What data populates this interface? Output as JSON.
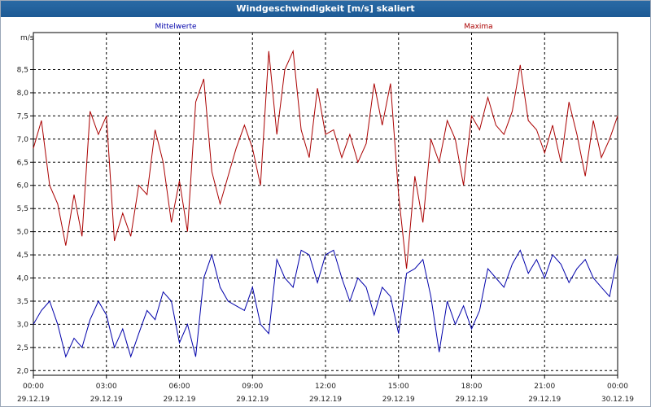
{
  "window": {
    "title": "Windgeschwindigkeit [m/s] skaliert"
  },
  "chart_data": {
    "type": "line",
    "title": "Windgeschwindigkeit [m/s] skaliert",
    "ylabel": "m/s",
    "ylim": [
      1.9,
      9.3
    ],
    "yticks": [
      "2.0",
      "2.5",
      "3.0",
      "3.5",
      "4.0",
      "4.5",
      "5.0",
      "5.5",
      "6.0",
      "6.5",
      "7.0",
      "7.5",
      "8.0",
      "8.5"
    ],
    "yticklabels": [
      "2,0",
      "2,5",
      "3,0",
      "3,5",
      "4,0",
      "4,5",
      "5,0",
      "5,5",
      "6,0",
      "6,5",
      "7,0",
      "7,5",
      "8,0",
      "8,5"
    ],
    "xticks": [
      {
        "time": "00:00",
        "date": "29.12.19"
      },
      {
        "time": "03:00",
        "date": "29.12.19"
      },
      {
        "time": "06:00",
        "date": "29.12.19"
      },
      {
        "time": "09:00",
        "date": "29.12.19"
      },
      {
        "time": "12:00",
        "date": "29.12.19"
      },
      {
        "time": "15:00",
        "date": "29.12.19"
      },
      {
        "time": "18:00",
        "date": "29.12.19"
      },
      {
        "time": "21:00",
        "date": "29.12.19"
      },
      {
        "time": "00:00",
        "date": "30.12.19"
      }
    ],
    "grid": true,
    "legend_placement": "top",
    "x_hours": [
      0,
      0.33,
      0.67,
      1,
      1.33,
      1.67,
      2,
      2.33,
      2.67,
      3,
      3.33,
      3.67,
      4,
      4.33,
      4.67,
      5,
      5.33,
      5.67,
      6,
      6.33,
      6.67,
      7,
      7.33,
      7.67,
      8,
      8.33,
      8.67,
      9,
      9.33,
      9.67,
      10,
      10.33,
      10.67,
      11,
      11.33,
      11.67,
      12,
      12.33,
      12.67,
      13,
      13.33,
      13.67,
      14,
      14.33,
      14.67,
      15,
      15.33,
      15.67,
      16,
      16.33,
      16.67,
      17,
      17.33,
      17.67,
      18,
      18.33,
      18.67,
      19,
      19.33,
      19.67,
      20,
      20.33,
      20.67,
      21,
      21.33,
      21.67,
      22,
      22.33,
      22.67,
      23,
      23.33,
      23.67,
      24
    ],
    "series": [
      {
        "name": "Mittelwerte",
        "color": "#0000aa",
        "values": [
          3.0,
          3.3,
          3.5,
          3.0,
          2.3,
          2.7,
          2.5,
          3.1,
          3.5,
          3.2,
          2.5,
          2.9,
          2.3,
          2.8,
          3.3,
          3.1,
          3.7,
          3.5,
          2.6,
          3.0,
          2.3,
          4.0,
          4.5,
          3.8,
          3.5,
          3.4,
          3.3,
          3.8,
          3.0,
          2.8,
          4.4,
          4.0,
          3.8,
          4.6,
          4.5,
          3.9,
          4.5,
          4.6,
          4.0,
          3.5,
          4.0,
          3.8,
          3.2,
          3.8,
          3.6,
          2.8,
          4.1,
          4.2,
          4.4,
          3.6,
          2.4,
          3.5,
          3.0,
          3.4,
          2.9,
          3.3,
          4.2,
          4.0,
          3.8,
          4.3,
          4.6,
          4.1,
          4.4,
          4.0,
          4.5,
          4.3,
          3.9,
          4.2,
          4.4,
          4.0,
          3.8,
          3.6,
          4.5
        ]
      },
      {
        "name": "Maxima",
        "color": "#aa0000",
        "values": [
          6.8,
          7.4,
          6.0,
          5.6,
          4.7,
          5.8,
          4.9,
          7.6,
          7.1,
          7.5,
          4.8,
          5.4,
          4.9,
          6.0,
          5.8,
          7.2,
          6.5,
          5.2,
          6.1,
          5.0,
          7.8,
          8.3,
          6.3,
          5.6,
          6.2,
          6.8,
          7.3,
          6.8,
          6.0,
          8.9,
          7.1,
          8.5,
          8.9,
          7.2,
          6.6,
          8.1,
          7.1,
          7.2,
          6.6,
          7.1,
          6.5,
          6.9,
          8.2,
          7.3,
          8.2,
          5.8,
          4.2,
          6.2,
          5.2,
          7.0,
          6.5,
          7.4,
          7.0,
          6.0,
          7.5,
          7.2,
          7.9,
          7.3,
          7.1,
          7.6,
          8.6,
          7.4,
          7.2,
          6.7,
          7.3,
          6.5,
          7.8,
          7.1,
          6.2,
          7.4,
          6.6,
          7.0,
          7.5
        ]
      }
    ]
  }
}
